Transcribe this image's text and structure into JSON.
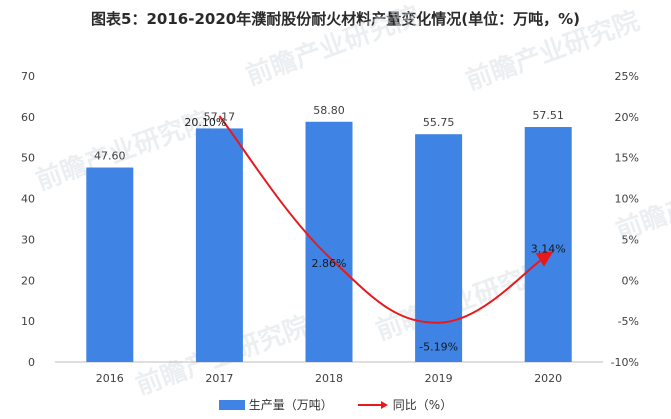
{
  "title": "图表5：2016-2020年濮耐股份耐火材料产量变化情况(单位：万吨，%)",
  "colors": {
    "bar": "#3f84e5",
    "line": "#e8191c",
    "grid": "#d9d9d9",
    "text": "#404040"
  },
  "legend": {
    "bar_label": "生产量（万吨）",
    "line_label": "同比（%）"
  },
  "watermark": "前瞻产业研究院",
  "chart_data": {
    "type": "bar",
    "categories": [
      "2016",
      "2017",
      "2018",
      "2019",
      "2020"
    ],
    "series": [
      {
        "name": "生产量（万吨）",
        "type": "bar",
        "axis": "left",
        "values": [
          47.6,
          57.17,
          58.8,
          55.75,
          57.51
        ],
        "labels": [
          "47.60",
          "57.17",
          "58.80",
          "55.75",
          "57.51"
        ]
      },
      {
        "name": "同比（%）",
        "type": "line",
        "axis": "right",
        "x": [
          "2017",
          "2018",
          "2019",
          "2020"
        ],
        "values": [
          20.1,
          2.86,
          -5.19,
          3.14
        ],
        "labels": [
          "20.10%",
          "2.86%",
          "-5.19%",
          "3.14%"
        ]
      }
    ],
    "y_left": {
      "min": 0,
      "max": 70,
      "ticks": [
        "0",
        "10",
        "20",
        "30",
        "40",
        "50",
        "60",
        "70"
      ]
    },
    "y_right": {
      "min": -10,
      "max": 25,
      "ticks": [
        "-10%",
        "-5%",
        "0%",
        "5%",
        "10%",
        "15%",
        "20%",
        "25%"
      ]
    },
    "grid": false,
    "legend_position": "bottom"
  }
}
